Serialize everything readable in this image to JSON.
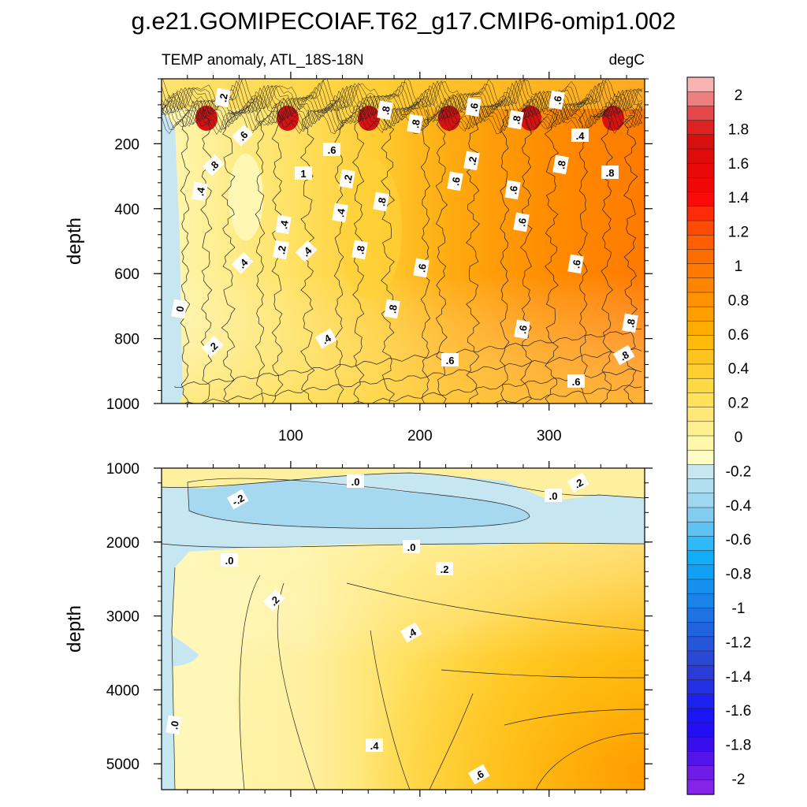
{
  "chart_data": {
    "type": "heatmap",
    "title": "g.e21.GOMIPECOIAF.T62_g17.CMIP6-omip1.002",
    "left_string": "TEMP anomaly, ATL_18S-18N",
    "right_string": "degC",
    "colorbar_labels": [
      "2",
      "1.8",
      "1.6",
      "1.4",
      "1.2",
      "1",
      "0.8",
      "0.6",
      "0.4",
      "0.2",
      "0",
      "-0.2",
      "-0.4",
      "-0.6",
      "-0.8",
      "-1",
      "-1.2",
      "-1.4",
      "-1.6",
      "-1.8",
      "-2"
    ],
    "colorbar_colors": [
      "#f8b3b3",
      "#ee7f7f",
      "#e54848",
      "#dc2222",
      "#d80f0f",
      "#e00c0c",
      "#ea0909",
      "#f20707",
      "#fa0a0a",
      "#ff2b07",
      "#ff4a05",
      "#ff5f02",
      "#ff6c00",
      "#ff7800",
      "#ff8400",
      "#ff9200",
      "#ff9f00",
      "#ffad00",
      "#ffba0a",
      "#ffc420",
      "#ffcf32",
      "#ffd944",
      "#ffe15c",
      "#ffe877",
      "#fff08f",
      "#fff7ac",
      "#fffcc6",
      "#c6e7f2",
      "#b2dff0",
      "#9fd6f0",
      "#82ccf0",
      "#60c2f2",
      "#30b8f8",
      "#10aef8",
      "#12a0f4",
      "#1690ee",
      "#1a82e8",
      "#1e72e2",
      "#2163dc",
      "#2655d8",
      "#2a48d4",
      "#2a3bd8",
      "#2430e4",
      "#1e22f0",
      "#1a14f6",
      "#240ef2",
      "#3a0eec",
      "#5214e8",
      "#6e1ce6",
      "#8424e8"
    ],
    "xlim": [
      0,
      374
    ],
    "x_ticks": [
      "100",
      "200",
      "300"
    ],
    "panels": [
      {
        "name": "upper",
        "ylabel": "depth",
        "ylim": [
          1000,
          0
        ],
        "y_ticks": [
          "200",
          "400",
          "600",
          "800",
          "1000"
        ],
        "contour_labels": [
          ".2",
          ".8",
          ".6",
          ".8",
          ".6",
          ".8",
          ".6",
          ".4",
          ".8",
          ".6",
          ".2",
          ".8",
          ".8",
          "1",
          ".2",
          ".4",
          ".6",
          ".8",
          ".4",
          ".6",
          ".4",
          ".8",
          ".4",
          ".6",
          ".4",
          ".6",
          ".2",
          ".8",
          ".6",
          "0",
          ".6",
          ".2",
          ".8",
          ".4",
          ".6",
          ".8",
          ".6"
        ]
      },
      {
        "name": "lower",
        "ylabel": "depth",
        "ylim": [
          5350,
          1000
        ],
        "y_ticks": [
          "1000",
          "2000",
          "3000",
          "4000",
          "5000"
        ],
        "contour_labels": [
          ".0",
          ".2",
          "-.2",
          ".0",
          ".0",
          ".0",
          ".2",
          ".2",
          ".4",
          ".0",
          ".4",
          ".6"
        ]
      }
    ]
  }
}
